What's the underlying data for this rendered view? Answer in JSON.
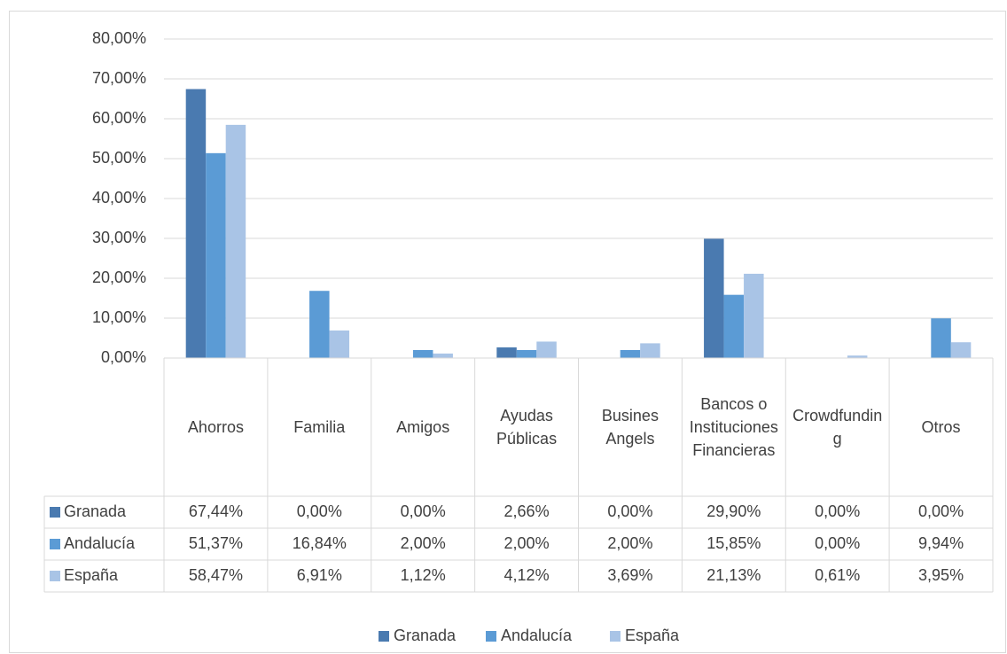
{
  "chart_data": {
    "type": "bar",
    "categories": [
      "Ahorros",
      "Familia",
      "Amigos",
      "Ayudas Públicas",
      "Busines Angels",
      "Bancos o Instituciones Financieras",
      "Crowdfunding",
      "Otros"
    ],
    "series": [
      {
        "name": "Granada",
        "color": "#4a7ab0",
        "values": [
          67.44,
          0,
          0,
          2.66,
          0,
          29.9,
          0,
          0
        ],
        "value_labels": [
          "67,44%",
          "0,00%",
          "0,00%",
          "2,66%",
          "0,00%",
          "29,90%",
          "0,00%",
          "0,00%"
        ]
      },
      {
        "name": "Andalucía",
        "color": "#5b9bd5",
        "values": [
          51.37,
          16.84,
          2,
          2,
          2,
          15.85,
          0,
          9.94
        ],
        "value_labels": [
          "51,37%",
          "16,84%",
          "2,00%",
          "2,00%",
          "2,00%",
          "15,85%",
          "0,00%",
          "9,94%"
        ]
      },
      {
        "name": "España",
        "color": "#a9c4e6",
        "values": [
          58.47,
          6.91,
          1.12,
          4.12,
          3.69,
          21.13,
          0.61,
          3.95
        ],
        "value_labels": [
          "58,47%",
          "6,91%",
          "1,12%",
          "4,12%",
          "3,69%",
          "21,13%",
          "0,61%",
          "3,95%"
        ]
      }
    ],
    "ylim": [
      0,
      80
    ],
    "yticks": [
      {
        "value": 0,
        "label": "0,00%"
      },
      {
        "value": 10,
        "label": "10,00%"
      },
      {
        "value": 20,
        "label": "20,00%"
      },
      {
        "value": 30,
        "label": "30,00%"
      },
      {
        "value": 40,
        "label": "40,00%"
      },
      {
        "value": 50,
        "label": "50,00%"
      },
      {
        "value": 60,
        "label": "60,00%"
      },
      {
        "value": 70,
        "label": "70,00%"
      },
      {
        "value": 80,
        "label": "80,00%"
      }
    ],
    "grid": true,
    "legend": "bottom"
  }
}
